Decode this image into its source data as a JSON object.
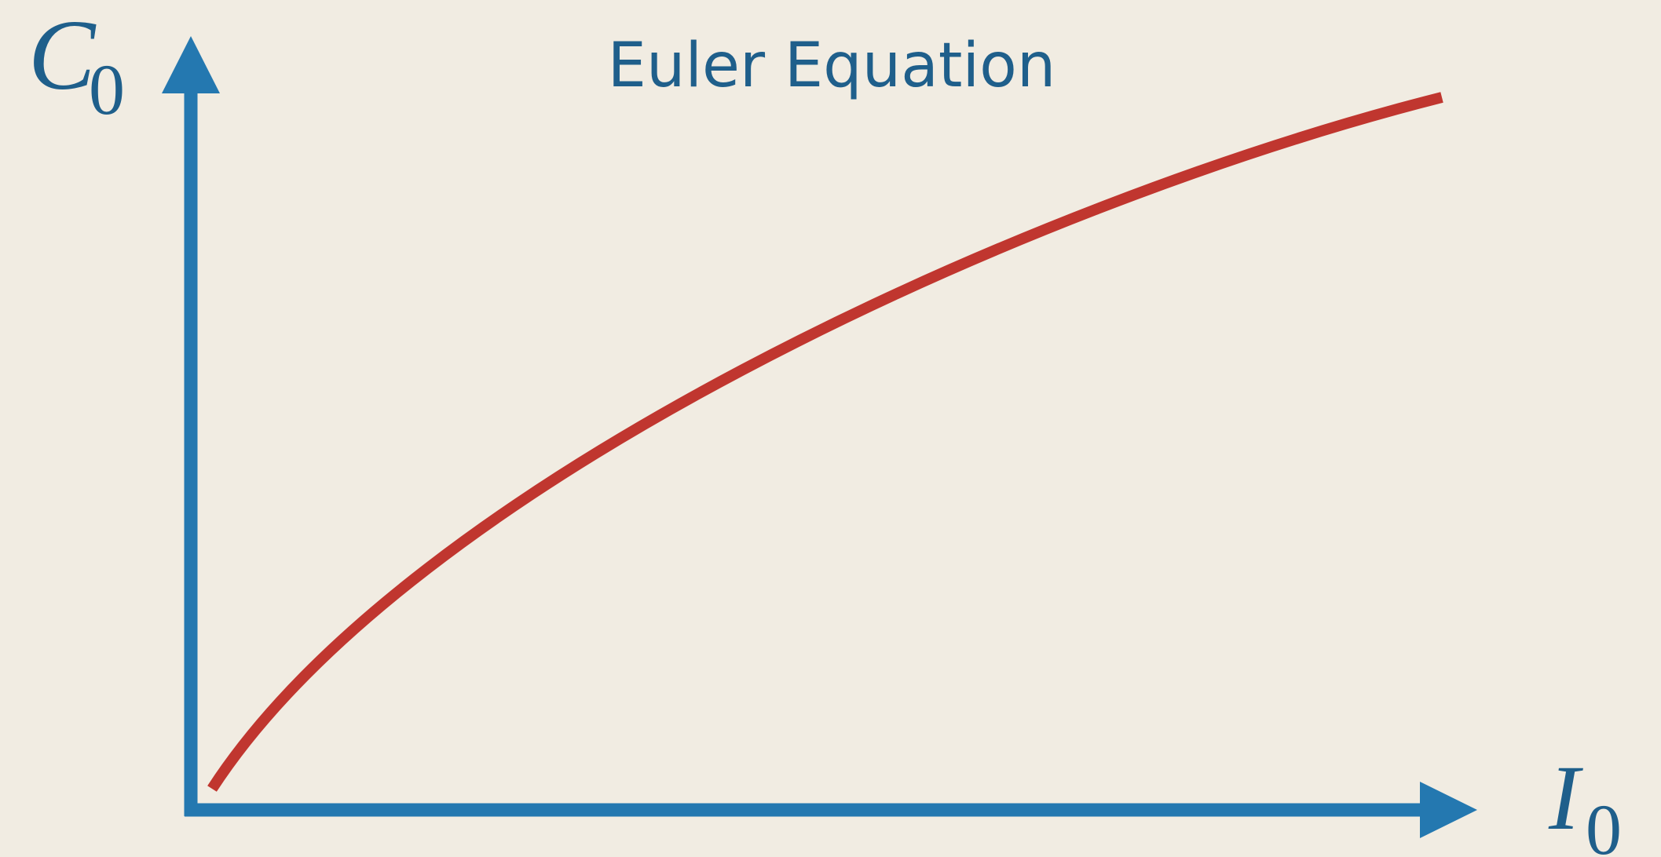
{
  "title": "Euler Equation",
  "y_axis_label": {
    "main": "C",
    "subscript": "0"
  },
  "x_axis_label": {
    "main": "I",
    "subscript": "0"
  }
}
